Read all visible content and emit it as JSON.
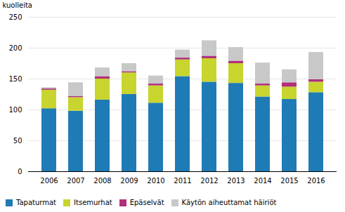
{
  "chart_data": {
    "type": "bar",
    "stacked": true,
    "ylabel": "kuolleita",
    "categories": [
      "2006",
      "2007",
      "2008",
      "2009",
      "2010",
      "2011",
      "2012",
      "2013",
      "2014",
      "2015",
      "2016"
    ],
    "series": [
      {
        "name": "Tapaturmat",
        "color": "#1f7bb5",
        "values": [
          102,
          98,
          116,
          125,
          111,
          154,
          145,
          143,
          121,
          117,
          128
        ]
      },
      {
        "name": "Itsemurhat",
        "color": "#c7d52e",
        "values": [
          30,
          22,
          34,
          35,
          28,
          27,
          38,
          32,
          18,
          20,
          17
        ]
      },
      {
        "name": "Epäselvät",
        "color": "#b0307a",
        "values": [
          2,
          2,
          4,
          2,
          3,
          3,
          4,
          4,
          3,
          7,
          4
        ]
      },
      {
        "name": "Käytön aiheuttamat häiriöt",
        "color": "#c8c8c8",
        "values": [
          2,
          22,
          14,
          13,
          13,
          13,
          25,
          22,
          34,
          21,
          44
        ]
      }
    ],
    "ylim": [
      0,
      250
    ],
    "yticks": [
      0,
      50,
      100,
      150,
      200,
      250
    ],
    "grid": true,
    "legend": "bottom"
  }
}
